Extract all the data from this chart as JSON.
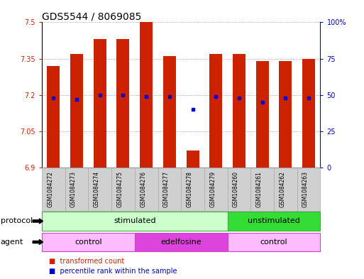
{
  "title": "GDS5544 / 8069085",
  "samples": [
    "GSM1084272",
    "GSM1084273",
    "GSM1084274",
    "GSM1084275",
    "GSM1084276",
    "GSM1084277",
    "GSM1084278",
    "GSM1084279",
    "GSM1084260",
    "GSM1084261",
    "GSM1084262",
    "GSM1084263"
  ],
  "bar_values": [
    7.32,
    7.37,
    7.43,
    7.43,
    7.5,
    7.36,
    6.97,
    7.37,
    7.37,
    7.34,
    7.34,
    7.35
  ],
  "percentile_values": [
    48,
    47,
    50,
    50,
    49,
    49,
    40,
    49,
    48,
    45,
    48,
    48
  ],
  "ylim": [
    6.9,
    7.5
  ],
  "yticks": [
    6.9,
    7.05,
    7.2,
    7.35,
    7.5
  ],
  "ytick_labels": [
    "6.9",
    "7.05",
    "7.2",
    "7.35",
    "7.5"
  ],
  "right_yticks": [
    0,
    25,
    50,
    75,
    100
  ],
  "right_ytick_labels": [
    "0",
    "25",
    "50",
    "75",
    "100%"
  ],
  "bar_color": "#cc2200",
  "dot_color": "#0000cc",
  "bar_width": 0.55,
  "protocol_groups": [
    {
      "label": "stimulated",
      "start": 0,
      "end": 7,
      "color": "#ccffcc",
      "edge_color": "#44aa44"
    },
    {
      "label": "unstimulated",
      "start": 8,
      "end": 11,
      "color": "#33dd33",
      "edge_color": "#44aa44"
    }
  ],
  "agent_groups": [
    {
      "label": "control",
      "start": 0,
      "end": 3,
      "color": "#ffbbff",
      "edge_color": "#cc44cc"
    },
    {
      "label": "edelfosine",
      "start": 4,
      "end": 7,
      "color": "#dd44dd",
      "edge_color": "#cc44cc"
    },
    {
      "label": "control",
      "start": 8,
      "end": 11,
      "color": "#ffbbff",
      "edge_color": "#cc44cc"
    }
  ],
  "legend_items": [
    {
      "label": "transformed count",
      "color": "#cc2200"
    },
    {
      "label": "percentile rank within the sample",
      "color": "#0000cc"
    }
  ],
  "grid_color": "#888888",
  "title_fontsize": 10,
  "tick_fontsize": 7,
  "row_label_fontsize": 8,
  "group_label_fontsize": 8,
  "sample_fontsize": 5.5,
  "legend_fontsize": 7
}
